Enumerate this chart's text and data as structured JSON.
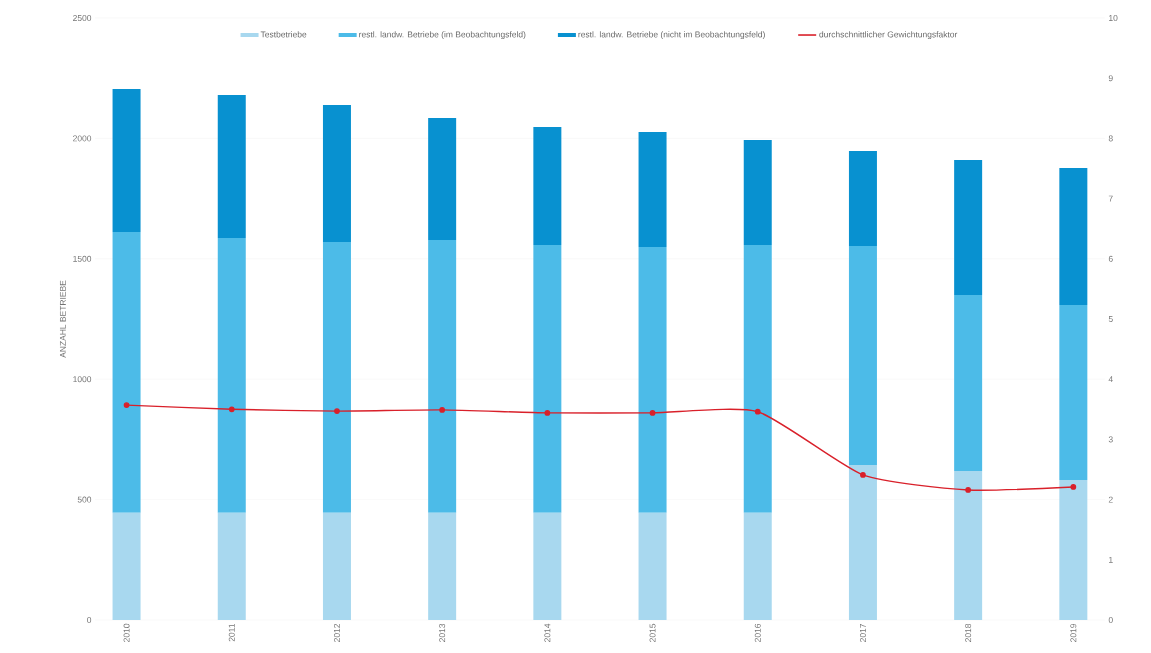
{
  "chart_data": {
    "type": "bar",
    "stacked": true,
    "ylabel": "ANZAHL BETRIEBE",
    "categories": [
      "2010",
      "2011",
      "2012",
      "2013",
      "2014",
      "2015",
      "2016",
      "2017",
      "2018",
      "2019"
    ],
    "series": [
      {
        "name": "Testbetriebe",
        "color": "#a8d8ef",
        "values": [
          445,
          445,
          445,
          445,
          445,
          445,
          445,
          644,
          619,
          581
        ]
      },
      {
        "name": "restl. landw. Betriebe (im Beobachtungsfeld)",
        "color": "#4cbbe8",
        "values": [
          1166,
          1141,
          1125,
          1133,
          1112,
          1104,
          1112,
          909,
          731,
          727
        ]
      },
      {
        "name": "restl. landw. Betriebe (nicht im Beobachtungsfeld)",
        "color": "#0891d0",
        "values": [
          594,
          594,
          569,
          507,
          490,
          478,
          436,
          395,
          560,
          569
        ]
      },
      {
        "name": "durchschnittlicher Gewichtungsfaktor",
        "type": "line",
        "axis": "y2",
        "color": "#d9202a",
        "values": [
          3.57,
          3.5,
          3.47,
          3.49,
          3.44,
          3.44,
          3.46,
          2.41,
          2.16,
          2.21
        ]
      }
    ],
    "ylim": [
      0,
      2500
    ],
    "yticks": [
      0,
      500,
      1000,
      1500,
      2000,
      2500
    ],
    "y2lim": [
      0,
      10
    ],
    "y2ticks": [
      0,
      1,
      2,
      3,
      4,
      5,
      6,
      7,
      8,
      9,
      10
    ],
    "grid": "y",
    "legend": "top",
    "marker": "circle",
    "line_style": "solid"
  }
}
